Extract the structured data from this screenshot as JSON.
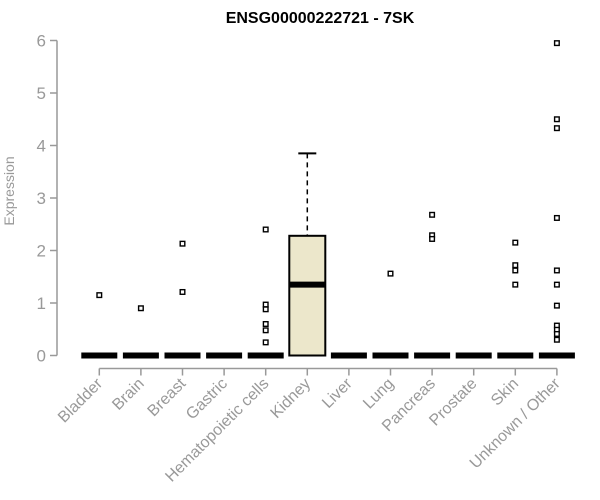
{
  "header": {
    "title": "ENSG00000222721 - 7SK"
  },
  "chart_data": {
    "type": "boxplot",
    "title": "ENSG00000222721 - 7SK",
    "xlabel": "",
    "ylabel": "Expression",
    "ylim": [
      0,
      6
    ],
    "yticks": [
      0,
      1,
      2,
      3,
      4,
      5,
      6
    ],
    "grid": false,
    "legend": "none",
    "categories": [
      "Bladder",
      "Brain",
      "Breast",
      "Gastric",
      "Hematopoietic cells",
      "Kidney",
      "Liver",
      "Lung",
      "Pancreas",
      "Prostate",
      "Skin",
      "Unknown / Other"
    ],
    "boxes": [
      {
        "category": "Bladder",
        "q1": 0,
        "median": 0,
        "q3": 0,
        "whisker_low": 0,
        "whisker_high": 0,
        "outliers": [
          1.15
        ]
      },
      {
        "category": "Brain",
        "q1": 0,
        "median": 0,
        "q3": 0,
        "whisker_low": 0,
        "whisker_high": 0,
        "outliers": [
          0.9
        ]
      },
      {
        "category": "Breast",
        "q1": 0,
        "median": 0,
        "q3": 0,
        "whisker_low": 0,
        "whisker_high": 0,
        "outliers": [
          2.13,
          1.21
        ]
      },
      {
        "category": "Gastric",
        "q1": 0,
        "median": 0,
        "q3": 0,
        "whisker_low": 0,
        "whisker_high": 0,
        "outliers": []
      },
      {
        "category": "Hematopoietic cells",
        "q1": 0,
        "median": 0,
        "q3": 0,
        "whisker_low": 0,
        "whisker_high": 0,
        "outliers": [
          2.4,
          0.97,
          0.88,
          0.6,
          0.48,
          0.25
        ]
      },
      {
        "category": "Kidney",
        "q1": 0,
        "median": 1.35,
        "q3": 2.28,
        "whisker_low": 0,
        "whisker_high": 3.85,
        "outliers": []
      },
      {
        "category": "Liver",
        "q1": 0,
        "median": 0,
        "q3": 0,
        "whisker_low": 0,
        "whisker_high": 0,
        "outliers": []
      },
      {
        "category": "Lung",
        "q1": 0,
        "median": 0,
        "q3": 0,
        "whisker_low": 0,
        "whisker_high": 0,
        "outliers": [
          1.56
        ]
      },
      {
        "category": "Pancreas",
        "q1": 0,
        "median": 0,
        "q3": 0,
        "whisker_low": 0,
        "whisker_high": 0,
        "outliers": [
          2.68,
          2.29,
          2.22
        ]
      },
      {
        "category": "Prostate",
        "q1": 0,
        "median": 0,
        "q3": 0,
        "whisker_low": 0,
        "whisker_high": 0,
        "outliers": []
      },
      {
        "category": "Skin",
        "q1": 0,
        "median": 0,
        "q3": 0,
        "whisker_low": 0,
        "whisker_high": 0,
        "outliers": [
          2.15,
          1.72,
          1.62,
          1.35
        ]
      },
      {
        "category": "Unknown / Other",
        "q1": 0,
        "median": 0,
        "q3": 0,
        "whisker_low": 0,
        "whisker_high": 0,
        "outliers": [
          5.95,
          4.5,
          4.33,
          2.62,
          1.62,
          1.35,
          0.95,
          0.57,
          0.49,
          0.41,
          0.3
        ]
      }
    ],
    "colors": {
      "box_fill": "#ECE7CB",
      "box_stroke": "#000000",
      "median": "#000000",
      "zero_bar": "#000000",
      "whisker": "#000000",
      "outlier_stroke": "#000000",
      "outlier_fill": "#ffffff",
      "axis": "#999999",
      "tick_label": "#999999",
      "title": "#000000",
      "background": "#ffffff"
    }
  }
}
